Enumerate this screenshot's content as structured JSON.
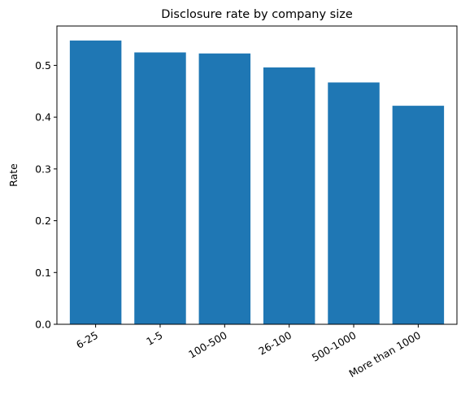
{
  "chart_data": {
    "type": "bar",
    "title": "Disclosure rate by company size",
    "xlabel": "",
    "ylabel": "Rate",
    "categories": [
      "6-25",
      "1-5",
      "100-500",
      "26-100",
      "500-1000",
      "More than 1000"
    ],
    "values": [
      0.548,
      0.525,
      0.523,
      0.496,
      0.467,
      0.422
    ],
    "ylim": [
      0,
      0.576
    ],
    "yticks": [
      0.0,
      0.1,
      0.2,
      0.3,
      0.4,
      0.5
    ],
    "ytick_labels": [
      "0.0",
      "0.1",
      "0.2",
      "0.3",
      "0.4",
      "0.5"
    ],
    "bar_color": "#1f77b4",
    "grid": false,
    "legend": "none"
  }
}
